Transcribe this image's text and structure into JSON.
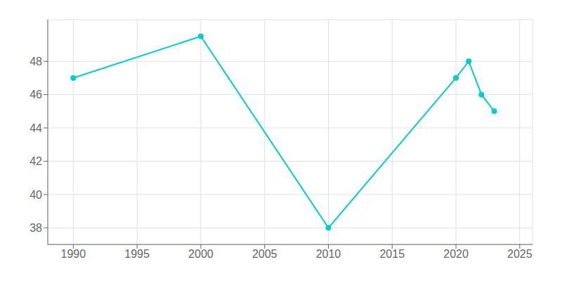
{
  "chart_data": {
    "type": "line",
    "x": [
      1990,
      2000,
      2010,
      2020,
      2021,
      2022,
      2023
    ],
    "values": [
      47,
      49.5,
      38,
      47,
      48,
      46,
      45
    ],
    "color": "#00CED1",
    "marker": "circle",
    "xlim": [
      1988,
      2026
    ],
    "xticks": [
      1990,
      1995,
      2000,
      2005,
      2010,
      2015,
      2020,
      2025
    ],
    "ylim": [
      37.0,
      50.5
    ],
    "yticks": [
      38,
      40,
      42,
      44,
      46,
      48
    ],
    "grid": true
  }
}
